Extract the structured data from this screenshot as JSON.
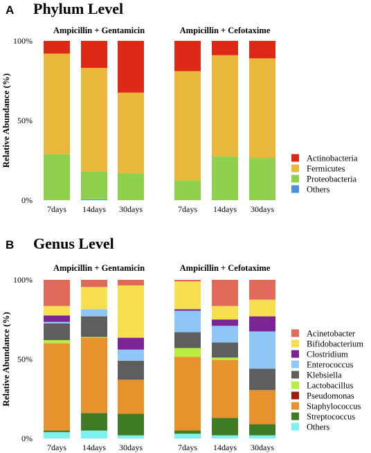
{
  "chart_data": [
    {
      "type": "bar",
      "stacked": true,
      "panel": "A",
      "title": "Phylum Level",
      "ylabel": "Relative Abundance (%)",
      "yticks": [
        "0%",
        "50%",
        "100%"
      ],
      "ylim": [
        0,
        100
      ],
      "groups": [
        "Ampicillin + Gentamicin",
        "Ampicillin + Cefotaxime"
      ],
      "categories": [
        "7days",
        "14days",
        "30days",
        "7days",
        "14days",
        "30days"
      ],
      "series": [
        {
          "name": "Others",
          "color": "#4a90e2",
          "values": [
            0,
            0.5,
            0,
            0,
            0,
            0
          ]
        },
        {
          "name": "Proteobacteria",
          "color": "#8fd14f",
          "values": [
            29,
            17.5,
            17,
            12.5,
            27.5,
            26.5
          ]
        },
        {
          "name": "Fermicutes",
          "color": "#e9b83a",
          "values": [
            63,
            65,
            50.5,
            68.5,
            63.5,
            62.5
          ]
        },
        {
          "name": "Actinobacteria",
          "color": "#dd2a16",
          "values": [
            8,
            17,
            32.5,
            19,
            9,
            11
          ]
        }
      ],
      "legend_order": [
        "Actinobacteria",
        "Fermicutes",
        "Proteobacteria",
        "Others"
      ],
      "legend_position": "right"
    },
    {
      "type": "bar",
      "stacked": true,
      "panel": "B",
      "title": "Genus Level",
      "ylabel": "Relative Abundance (%)",
      "yticks": [
        "0%",
        "50%",
        "100%"
      ],
      "ylim": [
        0,
        100
      ],
      "groups": [
        "Ampicillin + Gentamicin",
        "Ampicillin + Cefotaxime"
      ],
      "categories": [
        "7days",
        "14days",
        "30days",
        "7days",
        "14days",
        "30days"
      ],
      "series": [
        {
          "name": "Others",
          "color": "#7ff0f0",
          "values": [
            4,
            5,
            2,
            3,
            2,
            2
          ]
        },
        {
          "name": "Streptococcus",
          "color": "#3f7a25",
          "values": [
            1,
            11,
            13.5,
            2,
            11,
            7
          ]
        },
        {
          "name": "Staphylococcus",
          "color": "#e8922e",
          "values": [
            55,
            47.5,
            21.5,
            46.5,
            36.5,
            21.5
          ]
        },
        {
          "name": "Pseudomonas",
          "color": "#a01c0f",
          "values": [
            0,
            0,
            0,
            0,
            0,
            0
          ]
        },
        {
          "name": "Lactobacillus",
          "color": "#b6ef3f",
          "values": [
            2,
            0.5,
            0,
            5.5,
            1.5,
            0
          ]
        },
        {
          "name": "Klebsiella",
          "color": "#5e5e5e",
          "values": [
            10.5,
            13,
            12,
            10,
            9.5,
            13.5
          ]
        },
        {
          "name": "Enterococcus",
          "color": "#8ec7f5",
          "values": [
            1,
            4.5,
            7,
            13.5,
            10.5,
            23.5
          ]
        },
        {
          "name": "Clostridium",
          "color": "#7a2496",
          "values": [
            4,
            0,
            7.5,
            1,
            4,
            9.5
          ]
        },
        {
          "name": "Bifidobacterium",
          "color": "#f6e04f",
          "values": [
            6,
            14,
            33,
            17.5,
            8.5,
            10.5
          ]
        },
        {
          "name": "Acinetobacter",
          "color": "#e1695a",
          "values": [
            16.5,
            4.5,
            3.5,
            1,
            16.5,
            12.5
          ]
        }
      ],
      "legend_order": [
        "Acinetobacter",
        "Bifidobacterium",
        "Clostridium",
        "Enterococcus",
        "Klebsiella",
        "Lactobacillus",
        "Pseudomonas",
        "Staphylococcus",
        "Streptococcus",
        "Others"
      ],
      "legend_position": "right"
    }
  ]
}
